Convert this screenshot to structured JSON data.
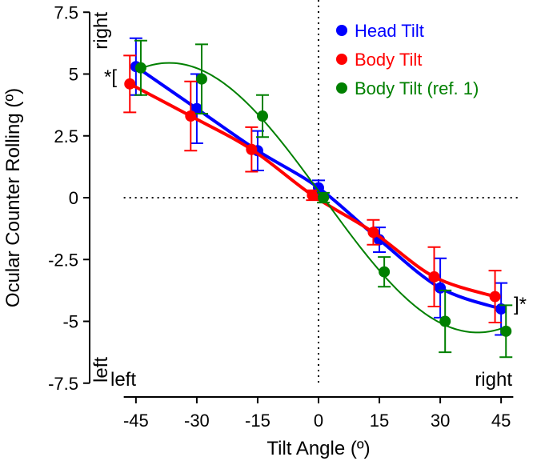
{
  "chart_data": {
    "type": "scatter",
    "title": "",
    "xlabel": "Tilt Angle (º)",
    "ylabel": "Ocular Counter Rolling (º)",
    "xlim": [
      -48,
      48
    ],
    "ylim": [
      -7.5,
      7.5
    ],
    "x_ticks": [
      -45,
      -30,
      -15,
      0,
      15,
      30,
      45
    ],
    "x_tick_labels": [
      "-45",
      "-30",
      "-15",
      "0",
      "15",
      "30",
      "45"
    ],
    "y_ticks": [
      7.5,
      5,
      2.5,
      0,
      -2.5,
      -5,
      -7.5
    ],
    "y_tick_labels": [
      "7.5",
      "5",
      "2.5",
      "0",
      "-2.5",
      "-5",
      "-7.5"
    ],
    "legend_placement": "top-right",
    "annotations": {
      "y_top": "right",
      "y_bottom": "left",
      "x_left": "left",
      "x_right": "right",
      "sig_left": "*[",
      "sig_right": "]*"
    },
    "series": [
      {
        "name": "Head Tilt",
        "color": "#0000ff",
        "offset": 0,
        "x": [
          -45,
          -30,
          -15,
          0,
          15,
          30,
          45
        ],
        "y": [
          5.3,
          3.6,
          1.9,
          0.4,
          -1.7,
          -3.65,
          -4.5
        ],
        "err": [
          1.15,
          1.4,
          0.8,
          0.3,
          0.5,
          1.2,
          1.05
        ]
      },
      {
        "name": "Body Tilt",
        "color": "#ff0000",
        "offset": -1.5,
        "x": [
          -45,
          -30,
          -15,
          0,
          15,
          30,
          45
        ],
        "y": [
          4.6,
          3.3,
          1.95,
          0.1,
          -1.4,
          -3.2,
          -4.0
        ],
        "err": [
          1.15,
          1.4,
          0.9,
          0.2,
          0.5,
          1.2,
          1.05
        ]
      },
      {
        "name": "Body Tilt (ref. 1)",
        "color": "#008000",
        "offset": 1.2,
        "x": [
          -45,
          -30,
          -15,
          0,
          15,
          30,
          45
        ],
        "y": [
          5.25,
          4.8,
          3.3,
          0.0,
          -3.0,
          -5.0,
          -5.4
        ],
        "err": [
          1.1,
          1.4,
          0.85,
          0.2,
          0.6,
          1.25,
          1.05
        ]
      }
    ]
  }
}
